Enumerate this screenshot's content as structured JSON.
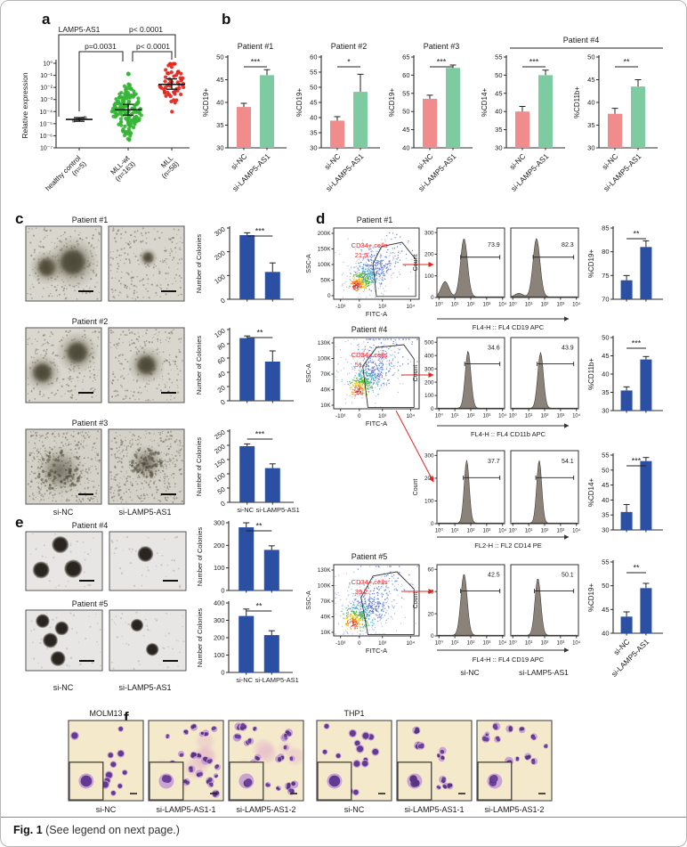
{
  "figure": {
    "caption_bold": "Fig. 1",
    "caption_rest": " (See legend on next page.)"
  },
  "colors": {
    "si_nc_bar": "#F08C8C",
    "si_kd_bar": "#7FCBA1",
    "blue_bar": "#2A4FA3",
    "healthy_dot": "#8A8A8A",
    "mll_wt_dot": "#35B535",
    "mll_dot": "#E52620",
    "annotation_red": "#FF2020",
    "hist_fill": "#8B8379",
    "axis": "#2b2b2b"
  },
  "panel_a": {
    "label": "a",
    "title": "LAMP5-AS1",
    "ylabel": "Relative expression",
    "chart_data": {
      "type": "scatter",
      "ylabel": "Relative expression",
      "ytick_labels": [
        "10⁰",
        "10⁻¹",
        "10⁻²",
        "10⁻³",
        "10⁻⁴",
        "10⁻⁵",
        "10⁻⁶",
        "10⁻⁷"
      ],
      "ytick_exponents": [
        0,
        -1,
        -2,
        -3,
        -4,
        -5,
        -6,
        -7
      ],
      "groups": [
        {
          "name": "healthy control",
          "n_label": "(n=5)",
          "n": 5,
          "median_exp": -4.65,
          "ci": [
            -4.8,
            -4.5
          ],
          "range": [
            -4.85,
            -4.45
          ],
          "color_key": "healthy_dot"
        },
        {
          "name": "MLL-wt",
          "n_label": "(n=163)",
          "n": 163,
          "median_exp": -3.85,
          "ci": [
            -4.3,
            -3.4
          ],
          "range": [
            -6.35,
            0.0
          ],
          "color_key": "mll_wt_dot"
        },
        {
          "name": "MLL",
          "n_label": "(n=58)",
          "n": 58,
          "median_exp": -1.75,
          "ci": [
            -2.15,
            -1.3
          ],
          "range": [
            -4.45,
            -0.05
          ],
          "color_key": "mll_dot"
        }
      ],
      "comparisons": [
        {
          "text": "p< 0.0001",
          "groups": [
            0,
            2
          ]
        },
        {
          "text": "p=0.0031",
          "groups": [
            0,
            1
          ]
        },
        {
          "text": "p< 0.0001",
          "groups": [
            1,
            2
          ]
        }
      ]
    }
  },
  "panel_b": {
    "label": "b",
    "group_header": "Patient #4",
    "charts": [
      {
        "title": "Patient #1",
        "chart_data": {
          "type": "bar",
          "ylabel": "%CD19+",
          "ylim": [
            30,
            50
          ],
          "yticks": [
            30,
            35,
            40,
            45,
            50
          ],
          "categories": [
            "si-NC",
            "si-LAMP5-AS1"
          ],
          "values": [
            39,
            46
          ],
          "errors": [
            0.8,
            1.2
          ],
          "significance": "***"
        }
      },
      {
        "title": "Patient #2",
        "chart_data": {
          "type": "bar",
          "ylabel": "%CD19+",
          "ylim": [
            30,
            60
          ],
          "yticks": [
            30,
            35,
            40,
            45,
            50,
            55,
            60
          ],
          "categories": [
            "si-NC",
            "si-LAMP5-AS1"
          ],
          "values": [
            39,
            48.5
          ],
          "errors": [
            1.3,
            5.8
          ],
          "significance": "*"
        }
      },
      {
        "title": "Patient #3",
        "chart_data": {
          "type": "bar",
          "ylabel": "%CD19+",
          "ylim": [
            40,
            65
          ],
          "yticks": [
            40,
            45,
            50,
            55,
            60,
            65
          ],
          "categories": [
            "si-NC",
            "si-LAMP5-AS1"
          ],
          "values": [
            53.5,
            62
          ],
          "errors": [
            1,
            0.8
          ],
          "significance": "***"
        }
      },
      {
        "title": "",
        "chart_data": {
          "type": "bar",
          "ylabel": "%CD14+",
          "ylim": [
            30,
            55
          ],
          "yticks": [
            30,
            35,
            40,
            45,
            50,
            55
          ],
          "categories": [
            "si-NC",
            "si-LAMP5-AS1"
          ],
          "values": [
            40,
            50
          ],
          "errors": [
            1.4,
            1.4
          ],
          "significance": "***"
        }
      },
      {
        "title": "",
        "chart_data": {
          "type": "bar",
          "ylabel": "%CD11b+",
          "ylim": [
            30,
            50
          ],
          "yticks": [
            30,
            35,
            40,
            45,
            50
          ],
          "categories": [
            "si-NC",
            "si-LAMP5-AS1"
          ],
          "values": [
            37.5,
            43.5
          ],
          "errors": [
            1.2,
            1.5
          ],
          "significance": "**"
        }
      }
    ]
  },
  "panel_c": {
    "label": "c",
    "col_labels": [
      "si-NC",
      "si-LAMP5-AS1"
    ],
    "rows": [
      {
        "title": "Patient #1",
        "images": [
          {
            "style": "fuzzy",
            "blobs": [
              [
                0.28,
                0.55,
                0.16
              ],
              [
                0.62,
                0.48,
                0.24
              ]
            ]
          },
          {
            "style": "fuzzy",
            "blobs": [
              [
                0.52,
                0.42,
                0.09
              ]
            ]
          }
        ],
        "chart_data": {
          "type": "bar",
          "ylabel": "Number of Colonies",
          "ylim": [
            0,
            300
          ],
          "yticks": [
            0,
            100,
            200,
            300
          ],
          "categories": [
            "si-NC",
            "si-LAMP5-AS1"
          ],
          "values": [
            270,
            115
          ],
          "errors": [
            10,
            38
          ],
          "significance": "***"
        }
      },
      {
        "title": "Patient #2",
        "images": [
          {
            "style": "fuzzy",
            "blobs": [
              [
                0.22,
                0.6,
                0.17
              ],
              [
                0.68,
                0.33,
                0.19
              ]
            ]
          },
          {
            "style": "fuzzy",
            "blobs": [
              [
                0.5,
                0.5,
                0.17
              ]
            ]
          }
        ],
        "chart_data": {
          "type": "bar",
          "ylabel": "Number of Colonies",
          "ylim": [
            0,
            100
          ],
          "yticks": [
            0,
            20,
            40,
            60,
            80,
            100
          ],
          "categories": [
            "si-NC",
            "si-LAMP5-AS1"
          ],
          "values": [
            88,
            55
          ],
          "errors": [
            3,
            15
          ],
          "significance": "**"
        }
      },
      {
        "title": "Patient #3",
        "images": [
          {
            "style": "diffuse",
            "blobs": [
              [
                0.45,
                0.55,
                0.3
              ]
            ]
          },
          {
            "style": "diffuse",
            "blobs": [
              [
                0.5,
                0.45,
                0.22
              ]
            ]
          }
        ],
        "chart_data": {
          "type": "bar",
          "ylabel": "Number of Colonies",
          "ylim": [
            0,
            250
          ],
          "yticks": [
            0,
            50,
            100,
            150,
            200,
            250
          ],
          "categories": [
            "si-NC",
            "si-LAMP5-AS1"
          ],
          "values": [
            197,
            120
          ],
          "errors": [
            8,
            15
          ],
          "significance": "***"
        }
      }
    ]
  },
  "panel_d": {
    "label": "d",
    "hist_col_labels": [
      "si-NC",
      "si-LAMP5-AS1"
    ],
    "bar_categories": [
      "si-NC",
      "si-LAMP5-AS1"
    ],
    "rows": [
      {
        "title": "Patient #1",
        "flow": {
          "gate_label": "CD34+ cells",
          "gate_value": "21.5",
          "ylabel": "SSC-A",
          "xlabel": "FITC-A",
          "yticks": [
            "0",
            "50K",
            "100K",
            "150K",
            "200K"
          ],
          "xticks": [
            "-10³",
            "0",
            "10³",
            "10⁴"
          ]
        },
        "hist": {
          "ylabel": "Count",
          "yticks": [
            0,
            100,
            200,
            300
          ],
          "xticks": [
            "10⁰",
            "10¹",
            "10²",
            "10³",
            "10⁴"
          ],
          "xlabel": "FL4-H :: FL4 CD19 APC",
          "values": [
            "73.9",
            "82.3"
          ]
        },
        "chart_data": {
          "type": "bar",
          "ylabel": "%CD19+",
          "ylim": [
            70,
            85
          ],
          "yticks": [
            70,
            75,
            80,
            85
          ],
          "values": [
            74,
            81
          ],
          "errors": [
            1,
            1.3
          ],
          "significance": "**"
        }
      },
      {
        "title": "Patient #4",
        "flow": {
          "gate_label": "CD34+ cells",
          "gate_value": "51.1",
          "ylabel": "SSC-A",
          "xlabel": "FITC-A",
          "yticks": [
            "10K",
            "40K",
            "70K",
            "100K",
            "130K"
          ],
          "xticks": [
            "-10³",
            "0",
            "10³",
            "10⁴"
          ]
        },
        "hist": {
          "ylabel": "Count",
          "yticks": [
            0,
            100,
            200,
            300,
            400,
            500
          ],
          "xticks": [
            "10⁰",
            "10¹",
            "10²",
            "10³",
            "10⁴"
          ],
          "xlabel": "FL4-H :: FL4 CD11b APC",
          "values": [
            "34.6",
            "43.9"
          ]
        },
        "chart_data": {
          "type": "bar",
          "ylabel": "%CD11b+",
          "ylim": [
            30,
            50
          ],
          "yticks": [
            30,
            35,
            40,
            45,
            50
          ],
          "values": [
            35.5,
            44
          ],
          "errors": [
            1,
            0.8
          ],
          "significance": "***"
        }
      },
      {
        "title": "",
        "flow": null,
        "hist": {
          "ylabel": "Count",
          "yticks": [
            0,
            100,
            200,
            300
          ],
          "xticks": [
            "10⁰",
            "10¹",
            "10²",
            "10³",
            "10⁴"
          ],
          "xlabel": "FL2-H :: FL2 CD14 PE",
          "values": [
            "37.7",
            "54.1"
          ]
        },
        "chart_data": {
          "type": "bar",
          "ylabel": "%CD14+",
          "ylim": [
            30,
            55
          ],
          "yticks": [
            30,
            35,
            40,
            45,
            50,
            55
          ],
          "values": [
            36,
            53
          ],
          "errors": [
            2.5,
            1.2
          ],
          "significance": "***"
        }
      },
      {
        "title": "Patient #5",
        "flow": {
          "gate_label": "CD34+ cells",
          "gate_value": "39.2",
          "ylabel": "SSC-A",
          "xlabel": "FITC-A",
          "yticks": [
            "10K",
            "40K",
            "70K",
            "100K",
            "130K"
          ],
          "xticks": [
            "-10³",
            "0",
            "10³",
            "10⁴"
          ]
        },
        "hist": {
          "ylabel": "Count",
          "yticks": [
            0,
            20,
            40,
            60
          ],
          "xticks": [
            "10⁰",
            "10¹",
            "10²",
            "10³",
            "10⁴"
          ],
          "xlabel": "FL4-H :: FL4 CD19 APC",
          "values": [
            "42.5",
            "50.1"
          ]
        },
        "chart_data": {
          "type": "bar",
          "ylabel": "%CD19+",
          "ylim": [
            40,
            55
          ],
          "yticks": [
            40,
            45,
            50,
            55
          ],
          "values": [
            43.5,
            49.5
          ],
          "errors": [
            1,
            1
          ],
          "significance": "**"
        }
      }
    ]
  },
  "panel_e": {
    "label": "e",
    "col_labels": [
      "si-NC",
      "si-LAMP5-AS1"
    ],
    "rows": [
      {
        "title": "Patient #4",
        "images": [
          {
            "style": "ball",
            "blobs": [
              [
                0.45,
                0.22,
                0.15
              ],
              [
                0.2,
                0.65,
                0.15
              ],
              [
                0.62,
                0.63,
                0.16
              ]
            ]
          },
          {
            "style": "ball",
            "blobs": [
              [
                0.47,
                0.38,
                0.14
              ]
            ]
          }
        ],
        "chart_data": {
          "type": "bar",
          "ylabel": "Number of Colonies",
          "ylim": [
            0,
            300
          ],
          "yticks": [
            0,
            100,
            200,
            300
          ],
          "categories": [
            "si-NC",
            "si-LAMP5-AS1"
          ],
          "values": [
            280,
            180
          ],
          "errors": [
            20,
            18
          ],
          "significance": "**"
        }
      },
      {
        "title": "Patient #5",
        "images": [
          {
            "style": "ball",
            "blobs": [
              [
                0.22,
                0.18,
                0.12
              ],
              [
                0.47,
                0.3,
                0.12
              ],
              [
                0.32,
                0.5,
                0.13
              ],
              [
                0.42,
                0.8,
                0.13
              ]
            ]
          },
          {
            "style": "ball",
            "blobs": [
              [
                0.36,
                0.25,
                0.11
              ],
              [
                0.56,
                0.65,
                0.11
              ]
            ]
          }
        ],
        "chart_data": {
          "type": "bar",
          "ylabel": "Number of Colonies",
          "ylim": [
            0,
            400
          ],
          "yticks": [
            0,
            100,
            200,
            300,
            400
          ],
          "categories": [
            "si-NC",
            "si-LAMP5-AS1"
          ],
          "values": [
            325,
            215
          ],
          "errors": [
            40,
            25
          ],
          "significance": "**"
        }
      }
    ]
  },
  "panel_f": {
    "label": "f",
    "groups": [
      {
        "title": "MOLM13",
        "images": [
          {
            "label": "si-NC",
            "style": "blast",
            "cells": 13,
            "smudge": false
          },
          {
            "label": "si-LAMP5-AS1-1",
            "style": "diff",
            "cells": 26,
            "smudge": true
          },
          {
            "label": "si-LAMP5-AS1-2",
            "style": "diff",
            "cells": 22,
            "smudge": true
          }
        ]
      },
      {
        "title": "THP1",
        "images": [
          {
            "label": "si-NC",
            "style": "blast",
            "cells": 16,
            "smudge": false
          },
          {
            "label": "si-LAMP5-AS1-1",
            "style": "diff",
            "cells": 11,
            "smudge": false
          },
          {
            "label": "si-LAMP5-AS1-2",
            "style": "diff",
            "cells": 15,
            "smudge": false
          }
        ]
      }
    ]
  }
}
